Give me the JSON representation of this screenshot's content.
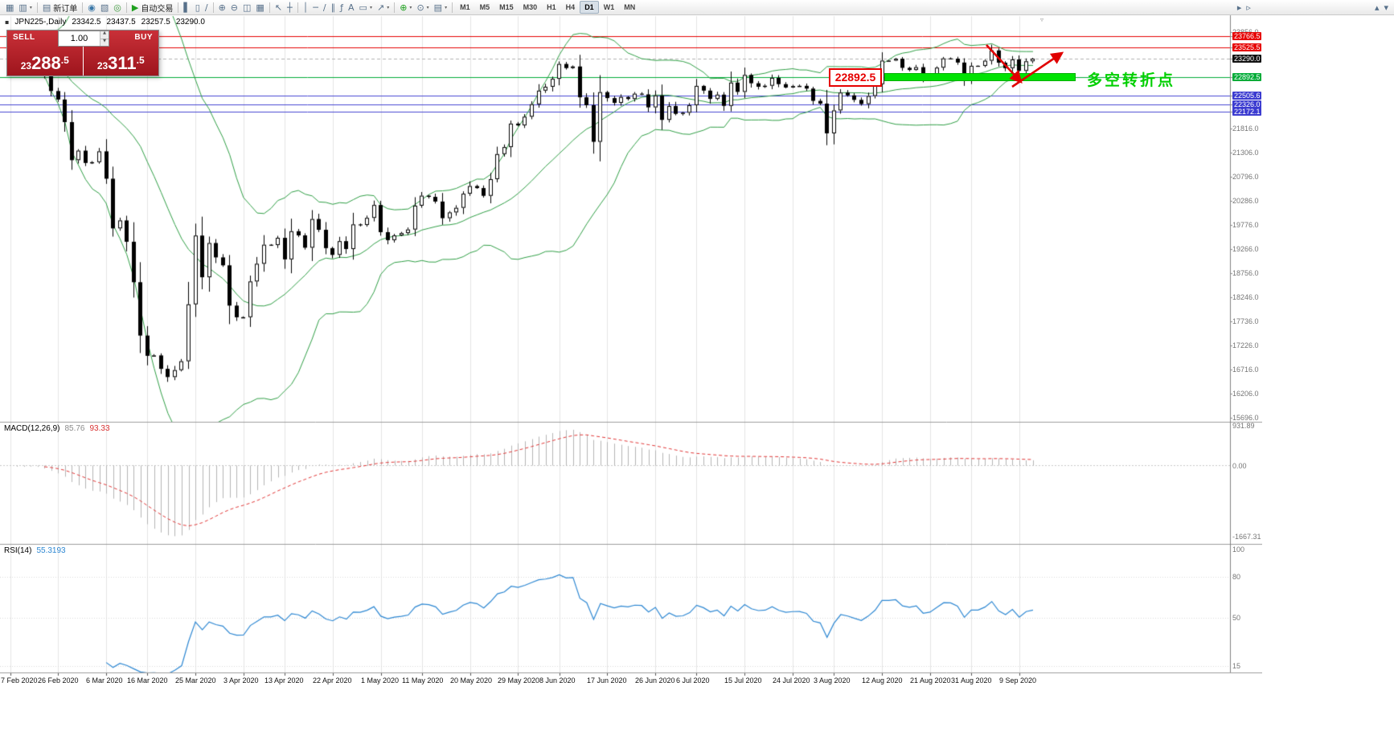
{
  "toolbar": {
    "timeframes": [
      "M1",
      "M5",
      "M15",
      "M30",
      "H1",
      "H4",
      "D1",
      "W1",
      "MN"
    ],
    "active_timeframe": "D1",
    "items": [
      {
        "n": "new-chart-icon",
        "g": "▦"
      },
      {
        "n": "chart-profiles-icon",
        "g": "▥",
        "dd": true
      },
      {
        "sep": true
      },
      {
        "n": "new-order-button",
        "g": "▤",
        "label": "新订单"
      },
      {
        "sep": true
      },
      {
        "n": "market-watch-icon",
        "g": "◉",
        "c": "#3b78a8"
      },
      {
        "n": "data-window-icon",
        "g": "▧"
      },
      {
        "n": "terminal-icon",
        "g": "◎",
        "c": "#3f9a3f"
      },
      {
        "sep": true
      },
      {
        "n": "autotrade-button",
        "g": "▶",
        "label": "自动交易",
        "c": "#1ea01e"
      },
      {
        "sep": true
      },
      {
        "n": "bar-chart-icon",
        "g": "▌"
      },
      {
        "n": "candlestick-chart-icon",
        "g": "▯"
      },
      {
        "n": "line-chart-icon",
        "g": "∕"
      },
      {
        "sep": true
      },
      {
        "n": "zoom-in-icon",
        "g": "⊕"
      },
      {
        "n": "zoom-out-icon",
        "g": "⊖"
      },
      {
        "n": "tile-windows-icon",
        "g": "◫"
      },
      {
        "n": "cascade-windows-icon",
        "g": "▦"
      },
      {
        "sep": true
      },
      {
        "n": "cursor-icon",
        "g": "↖"
      },
      {
        "n": "crosshair-icon",
        "g": "┼"
      },
      {
        "sep": true
      },
      {
        "n": "vertical-line-icon",
        "g": "│"
      },
      {
        "n": "horizontal-line-icon",
        "g": "─"
      },
      {
        "n": "trendline-icon",
        "g": "∕"
      },
      {
        "n": "channel-icon",
        "g": "∥"
      },
      {
        "n": "fibonacci-icon",
        "g": "ƒ"
      },
      {
        "n": "text-tool-icon",
        "g": "A"
      },
      {
        "n": "shapes-icon",
        "g": "▭",
        "dd": true
      },
      {
        "n": "arrow-tool-icon",
        "g": "↗",
        "dd": true
      },
      {
        "sep": true
      },
      {
        "n": "indicators-icon",
        "g": "⊕",
        "c": "#1ea01e",
        "dd": true
      },
      {
        "n": "periods-icon",
        "g": "⊙",
        "dd": true
      },
      {
        "n": "templates-icon",
        "g": "▤",
        "dd": true
      },
      {
        "sep": true
      },
      {
        "tf": true
      },
      {
        "spacer": true
      },
      {
        "n": "chart-shift-icon",
        "g": "▸"
      },
      {
        "n": "autoscroll-icon",
        "g": "▹"
      },
      {
        "gap": 148
      },
      {
        "n": "scroll-up-icon",
        "g": "▴"
      },
      {
        "n": "scroll-down-icon",
        "g": "▾"
      }
    ]
  },
  "chart": {
    "symbol_period": "JPN225-,Daily",
    "open": "23342.5",
    "high": "23437.5",
    "low": "23257.5",
    "close": "23290.0"
  },
  "trade_panel": {
    "sell_label": "SELL",
    "buy_label": "BUY",
    "volume": "1.00",
    "sell_price": "23288.5",
    "buy_price": "23311.5",
    "sell_pre": "23",
    "sell_big": "288",
    "sell_suf": ".5",
    "buy_pre": "23",
    "buy_big": "311",
    "buy_suf": ".5"
  },
  "price_axis": {
    "labels": [
      {
        "t": "23856.0",
        "p": 23856.0
      },
      {
        "t": "21816.0",
        "p": 21816.0
      },
      {
        "t": "21306.0",
        "p": 21306.0
      },
      {
        "t": "20796.0",
        "p": 20796.0
      },
      {
        "t": "20286.0",
        "p": 20286.0
      },
      {
        "t": "19776.0",
        "p": 19776.0
      },
      {
        "t": "19266.0",
        "p": 19266.0
      },
      {
        "t": "18756.0",
        "p": 18756.0
      },
      {
        "t": "18246.0",
        "p": 18246.0
      },
      {
        "t": "17736.0",
        "p": 17736.0
      },
      {
        "t": "17226.0",
        "p": 17226.0
      },
      {
        "t": "16716.0",
        "p": 16716.0
      },
      {
        "t": "16206.0",
        "p": 16206.0
      },
      {
        "t": "15696.0",
        "p": 15696.0
      },
      {
        "t": "23766.5",
        "p": 23766.5,
        "bg": "#e60000"
      },
      {
        "t": "23525.5",
        "p": 23525.5,
        "bg": "#e60000"
      },
      {
        "t": "23290.0",
        "p": 23290.0,
        "bg": "#101010"
      },
      {
        "t": "22892.5",
        "p": 22892.5,
        "bg": "#00ab37"
      },
      {
        "t": "22505.6",
        "p": 22505.6,
        "bg": "#3b3bd0"
      },
      {
        "t": "22326.0",
        "p": 22326.0,
        "bg": "#3b3bd0"
      },
      {
        "t": "22172.1",
        "p": 22172.1,
        "bg": "#3b3bd0"
      }
    ]
  },
  "macd": {
    "name": "MACD(12,26,9)",
    "value": "85.76",
    "signal": "93.33",
    "axis": [
      {
        "t": "931.89",
        "v": 931.89
      },
      {
        "t": "0.00",
        "v": 0
      },
      {
        "t": "-1667.31",
        "v": -1667.31
      }
    ]
  },
  "rsi": {
    "name": "RSI(14)",
    "value": "55.3193",
    "axis": [
      {
        "t": "100",
        "v": 100
      },
      {
        "t": "80",
        "v": 80
      },
      {
        "t": "50",
        "v": 50
      },
      {
        "t": "15",
        "v": 15
      }
    ]
  },
  "annotations": {
    "price_box_label": "22892.5",
    "pivot_label": "多空转折点"
  },
  "chart_data": {
    "type": "candlestick",
    "symbol": "JPN225-",
    "timeframe": "Daily",
    "y_axis_range": [
      15696.0,
      23970.0
    ],
    "indicators": {
      "bollinger": [
        20,
        2
      ],
      "macd": [
        12,
        26,
        9
      ],
      "rsi": 14
    },
    "levels": [
      {
        "price": 23766.5,
        "color": "#e60000"
      },
      {
        "price": 23525.5,
        "color": "#e60000"
      },
      {
        "price": 23290.0,
        "color": "#b0b0b0",
        "dash": true
      },
      {
        "price": 22892.5,
        "color": "#00ab37"
      },
      {
        "price": 22505.6,
        "color": "#4646d2"
      },
      {
        "price": 22326.0,
        "color": "#4646d2"
      },
      {
        "price": 22172.1,
        "color": "#4646d2"
      }
    ],
    "closes": [
      23523,
      23194,
      23401,
      23479,
      23387,
      22950,
      22605,
      22426,
      21948,
      21143,
      21344,
      21083,
      21100,
      21329,
      20750,
      19699,
      19867,
      19416,
      18560,
      17431,
      17002,
      17011,
      16727,
      16553,
      16700,
      16888,
      18092,
      19547,
      18665,
      19389,
      19085,
      18917,
      18065,
      17818,
      17820,
      18576,
      18950,
      19353,
      19346,
      19499,
      19043,
      19639,
      19551,
      19290,
      19897,
      19669,
      19281,
      19138,
      19429,
      19262,
      19783,
      19771,
      19921,
      20194,
      19619,
      19450,
      19550,
      19600,
      19675,
      20180,
      20391,
      20366,
      20267,
      19915,
      20037,
      20134,
      20433,
      20595,
      20552,
      20388,
      20741,
      21271,
      21419,
      21916,
      21878,
      22062,
      22326,
      22614,
      22696,
      22864,
      23178,
      23091,
      23125,
      22473,
      22305,
      21531,
      22582,
      22456,
      22355,
      22479,
      22437,
      22549,
      22534,
      22260,
      22512,
      21995,
      22288,
      22122,
      22146,
      22306,
      22714,
      22614,
      22439,
      22529,
      22291,
      22784,
      22587,
      22946,
      22770,
      22696,
      22717,
      22884,
      22751,
      22680,
      22710,
      22715,
      22657,
      22397,
      22339,
      21710,
      22195,
      22573,
      22514,
      22418,
      22330,
      22500,
      22750,
      23249,
      23250,
      23289,
      23096,
      23051,
      23110,
      22880,
      22920,
      23100,
      23296,
      23290,
      23208,
      22882,
      23139,
      23138,
      23247,
      23465,
      23205,
      23089,
      23274,
      23032,
      23235,
      23290
    ],
    "date_labels": [
      {
        "t": "7 Feb 2020",
        "i": 0
      },
      {
        "t": "26 Feb 2020",
        "i": 7
      },
      {
        "t": "6 Mar 2020",
        "i": 14
      },
      {
        "t": "16 Mar 2020",
        "i": 20
      },
      {
        "t": "25 Mar 2020",
        "i": 27
      },
      {
        "t": "3 Apr 2020",
        "i": 34
      },
      {
        "t": "13 Apr 2020",
        "i": 40
      },
      {
        "t": "22 Apr 2020",
        "i": 47
      },
      {
        "t": "1 May 2020",
        "i": 54
      },
      {
        "t": "11 May 2020",
        "i": 60
      },
      {
        "t": "20 May 2020",
        "i": 67
      },
      {
        "t": "29 May 2020",
        "i": 74
      },
      {
        "t": "8 Jun 2020",
        "i": 80
      },
      {
        "t": "17 Jun 2020",
        "i": 87
      },
      {
        "t": "26 Jun 2020",
        "i": 94
      },
      {
        "t": "6 Jul 2020",
        "i": 100
      },
      {
        "t": "15 Jul 2020",
        "i": 107
      },
      {
        "t": "24 Jul 2020",
        "i": 114
      },
      {
        "t": "3 Aug 2020",
        "i": 120
      },
      {
        "t": "12 Aug 2020",
        "i": 127
      },
      {
        "t": "21 Aug 2020",
        "i": 134
      },
      {
        "t": "31 Aug 2020",
        "i": 140
      },
      {
        "t": "9 Sep 2020",
        "i": 147
      }
    ]
  }
}
